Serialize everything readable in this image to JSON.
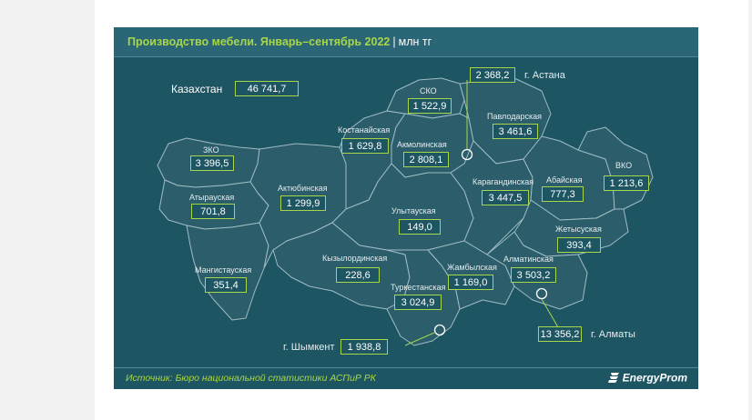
{
  "title": {
    "main": "Производство мебели. Январь–сентябрь 2022",
    "separator": "|",
    "unit": "млн тг"
  },
  "total": {
    "label": "Казахстан",
    "value": "46 741,7"
  },
  "regions": [
    {
      "id": "zko",
      "name": "ЗКО",
      "value": "3 396,5"
    },
    {
      "id": "atyrau",
      "name": "Атырауская",
      "value": "701,8"
    },
    {
      "id": "mangistau",
      "name": "Мангистауская",
      "value": "351,4"
    },
    {
      "id": "aktobe",
      "name": "Актюбинская",
      "value": "1 299,9"
    },
    {
      "id": "kostanay",
      "name": "Костанайская",
      "value": "1 629,8"
    },
    {
      "id": "sko",
      "name": "СКО",
      "value": "1 522,9"
    },
    {
      "id": "akmola",
      "name": "Акмолинская",
      "value": "2 808,1"
    },
    {
      "id": "pavlodar",
      "name": "Павлодарская",
      "value": "3 461,6"
    },
    {
      "id": "karaganda",
      "name": "Карагандинская",
      "value": "3 447,5"
    },
    {
      "id": "ulytau",
      "name": "Улытауская",
      "value": "149,0"
    },
    {
      "id": "abai",
      "name": "Абайская",
      "value": "777,3"
    },
    {
      "id": "vko",
      "name": "ВКО",
      "value": "1 213,6"
    },
    {
      "id": "zhetysu",
      "name": "Жетысуская",
      "value": "393,4"
    },
    {
      "id": "kyzylorda",
      "name": "Кызылординская",
      "value": "228,6"
    },
    {
      "id": "zhambyl",
      "name": "Жамбылская",
      "value": "1 169,0"
    },
    {
      "id": "almaty_reg",
      "name": "Алматинская",
      "value": "3 503,2"
    },
    {
      "id": "turkestan",
      "name": "Туркестанская",
      "value": "3 024,9"
    }
  ],
  "cities": [
    {
      "id": "astana",
      "name": "г. Астана",
      "value": "2 368,2"
    },
    {
      "id": "almaty",
      "name": "г. Алматы",
      "value": "13 356,2"
    },
    {
      "id": "shymkent",
      "name": "г. Шымкент",
      "value": "1 938,8"
    }
  ],
  "source": "Источник: Бюро национальной статистики АСПиР РК",
  "logo": "EnergyProm",
  "colors": {
    "background": "#1d5563",
    "region_fill": "#2b5d6b",
    "region_border": "#9fbcc3",
    "accent": "#a8d64a",
    "text": "#ffffff"
  }
}
